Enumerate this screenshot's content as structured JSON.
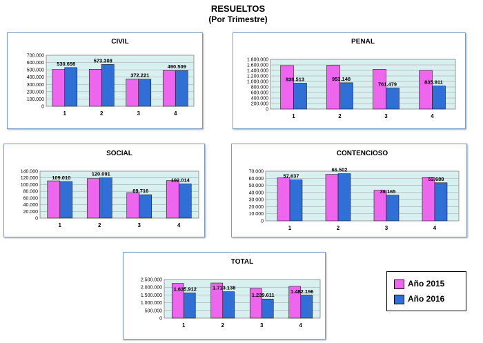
{
  "title": "RESUELTOS",
  "subtitle": "(Por Trimestre)",
  "colors": {
    "s2015": "#ee66ee",
    "s2016": "#2f6fd6",
    "plot_bg": "#d9f0f0",
    "panel_border": "#7a9ac8"
  },
  "legend": [
    {
      "label": "Año 2015",
      "color": "#ee66ee"
    },
    {
      "label": "Año 2016",
      "color": "#2f6fd6"
    }
  ],
  "chart_data": [
    {
      "id": "civil",
      "type": "bar",
      "title": "CIVIL",
      "categories": [
        "1",
        "2",
        "3",
        "4"
      ],
      "series": [
        {
          "name": "Año 2015",
          "values": [
            505000,
            508000,
            375000,
            490000
          ]
        },
        {
          "name": "Año 2016",
          "values": [
            530698,
            573308,
            372221,
            490509
          ]
        }
      ],
      "data_labels": [
        "530.698",
        "573.308",
        "372.221",
        "490.509"
      ],
      "ylim": [
        0,
        700000
      ],
      "yticks": [
        "0",
        "100.000",
        "200.000",
        "300.000",
        "400.000",
        "500.000",
        "600.000",
        "700.000"
      ]
    },
    {
      "id": "penal",
      "type": "bar",
      "title": "PENAL",
      "categories": [
        "1",
        "2",
        "3",
        "4"
      ],
      "series": [
        {
          "name": "Año 2015",
          "values": [
            1575000,
            1585000,
            1440000,
            1400000
          ]
        },
        {
          "name": "Año 2016",
          "values": [
            938513,
            953148,
            761479,
            835911
          ]
        }
      ],
      "data_labels": [
        "938.513",
        "953.148",
        "761.479",
        "835.911"
      ],
      "ylim": [
        0,
        1800000
      ],
      "yticks": [
        "0",
        "200.000",
        "400.000",
        "600.000",
        "800.000",
        "1.000.000",
        "1.200.000",
        "1.400.000",
        "1.600.000",
        "1.800.000"
      ]
    },
    {
      "id": "social",
      "type": "bar",
      "title": "SOCIAL",
      "categories": [
        "1",
        "2",
        "3",
        "4"
      ],
      "series": [
        {
          "name": "Año 2015",
          "values": [
            111000,
            118000,
            76000,
            112000
          ]
        },
        {
          "name": "Año 2016",
          "values": [
            109010,
            120091,
            69716,
            102014
          ]
        }
      ],
      "data_labels": [
        "109.010",
        "120.091",
        "69.716",
        "102.014"
      ],
      "ylim": [
        0,
        140000
      ],
      "yticks": [
        "0",
        "20.000",
        "40.000",
        "60.000",
        "80.000",
        "100.000",
        "120.000",
        "140.000"
      ]
    },
    {
      "id": "contencioso",
      "type": "bar",
      "title": "CONTENCIOSO",
      "categories": [
        "1",
        "2",
        "3",
        "4"
      ],
      "series": [
        {
          "name": "Año 2015",
          "values": [
            60500,
            65500,
            43000,
            61000
          ]
        },
        {
          "name": "Año 2016",
          "values": [
            57637,
            66502,
            36165,
            53688
          ]
        }
      ],
      "data_labels": [
        "57.637",
        "66.502",
        "36.165",
        "53.688"
      ],
      "ylim": [
        0,
        70000
      ],
      "yticks": [
        "0",
        "10.000",
        "20.000",
        "30.000",
        "40.000",
        "50.000",
        "60.000",
        "70.000"
      ]
    },
    {
      "id": "total",
      "type": "bar",
      "title": "TOTAL",
      "categories": [
        "1",
        "2",
        "3",
        "4"
      ],
      "series": [
        {
          "name": "Año 2015",
          "values": [
            2250000,
            2275000,
            1930000,
            2060000
          ]
        },
        {
          "name": "Año 2016",
          "values": [
            1635912,
            1713138,
            1239611,
            1482196
          ]
        }
      ],
      "data_labels": [
        "1.635.912",
        "1.713.138",
        "1.239.611",
        "1.482.196"
      ],
      "ylim": [
        0,
        2500000
      ],
      "yticks": [
        "0",
        "500.000",
        "1.000.000",
        "1.500.000",
        "2.000.000",
        "2.500.000"
      ]
    }
  ]
}
